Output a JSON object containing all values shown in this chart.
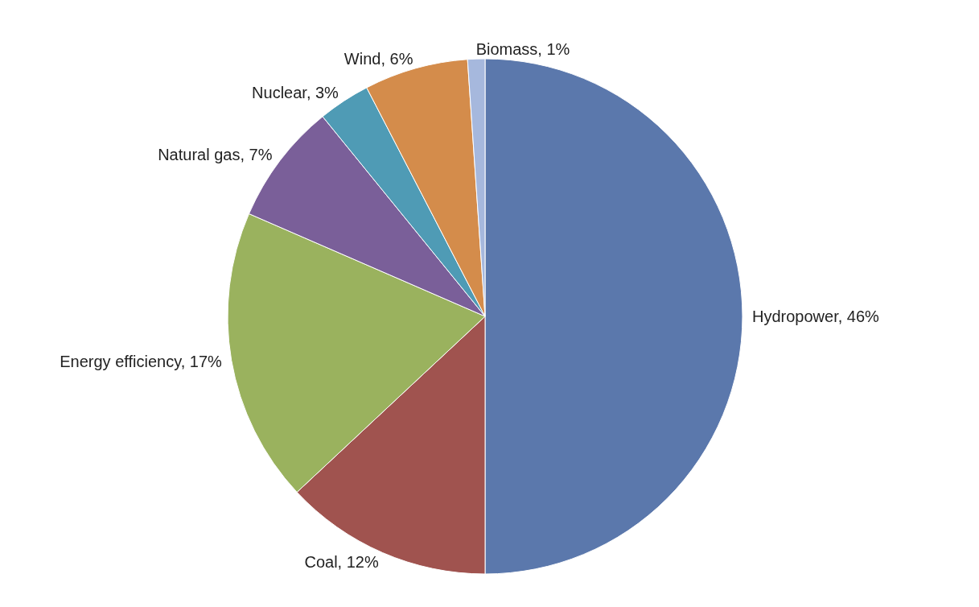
{
  "chart_data": {
    "type": "pie",
    "categories": [
      "Hydropower",
      "Coal",
      "Energy efficiency",
      "Natural gas",
      "Nuclear",
      "Wind",
      "Biomass"
    ],
    "values": [
      46,
      12,
      17,
      7,
      3,
      6,
      1
    ],
    "colors": [
      "#5b78ac",
      "#a0534f",
      "#9ab25e",
      "#7a5f99",
      "#4f9bb5",
      "#d48c4b",
      "#a6b8dd"
    ],
    "value_labels": [
      "46%",
      "12%",
      "17%",
      "7%",
      "3%",
      "6%",
      "1%"
    ],
    "legend": false
  }
}
